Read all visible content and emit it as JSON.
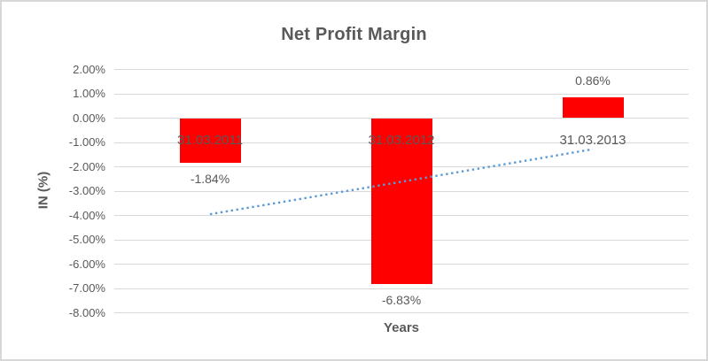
{
  "chart_data": {
    "type": "bar",
    "title": "Net Profit Margin",
    "xlabel": "Years",
    "ylabel": "IN (%)",
    "categories": [
      "31.03.2011",
      "31.03.2012",
      "31.03.2013"
    ],
    "values": [
      -1.84,
      -6.83,
      0.86
    ],
    "data_labels": [
      "-1.84%",
      "-6.83%",
      "0.86%"
    ],
    "ylim": [
      -8,
      2
    ],
    "ytick_step": 1,
    "ytick_labels": [
      "2.00%",
      "1.00%",
      "0.00%",
      "-1.00%",
      "-2.00%",
      "-3.00%",
      "-4.00%",
      "-5.00%",
      "-6.00%",
      "-7.00%",
      "-8.00%"
    ],
    "grid": true,
    "legend": false,
    "bar_color": "#ff0000",
    "label_color": "#595959",
    "gridline_color": "#d9d9d9",
    "trendline": {
      "type": "linear",
      "style": "dotted",
      "color": "#5b9bd5",
      "start_value": -3.95,
      "end_value": -1.28
    }
  }
}
